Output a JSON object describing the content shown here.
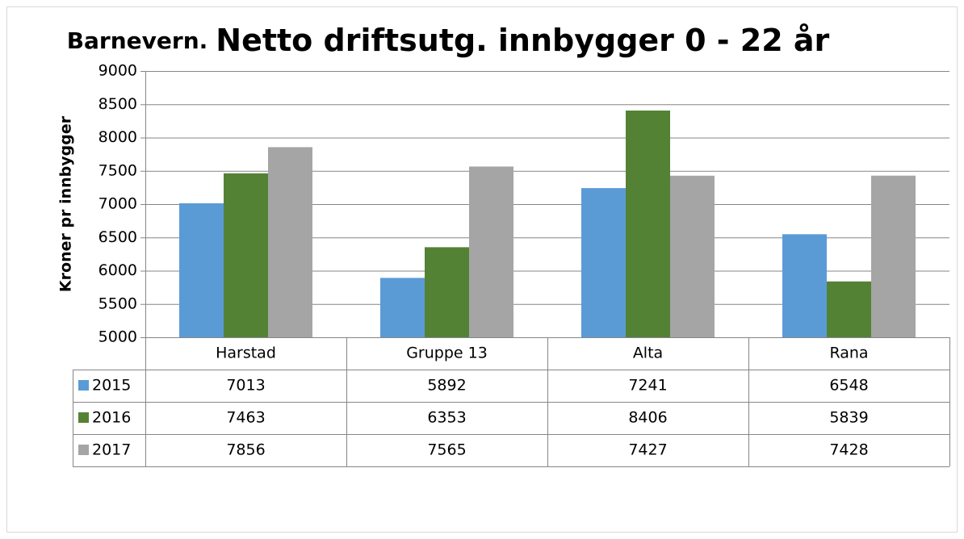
{
  "chart_data": {
    "type": "bar",
    "title": [
      "Barnevern.",
      "Netto driftsutg. innbygger 0 - 22 år"
    ],
    "y_label": "Kroner pr innbygger",
    "categories": [
      "Harstad",
      "Gruppe 13",
      "Alta",
      "Rana"
    ],
    "series": [
      {
        "name": "2015",
        "color": "#5b9bd5",
        "values": [
          7013,
          5892,
          7241,
          6548
        ]
      },
      {
        "name": "2016",
        "color": "#548235",
        "values": [
          7463,
          6353,
          8406,
          5839
        ]
      },
      {
        "name": "2017",
        "color": "#a5a5a5",
        "values": [
          7856,
          7565,
          7427,
          7428
        ]
      }
    ],
    "ylim": [
      5000,
      9000
    ],
    "yticks": [
      5000,
      5500,
      6000,
      6500,
      7000,
      7500,
      8000,
      8500,
      9000
    ],
    "grid": true
  }
}
